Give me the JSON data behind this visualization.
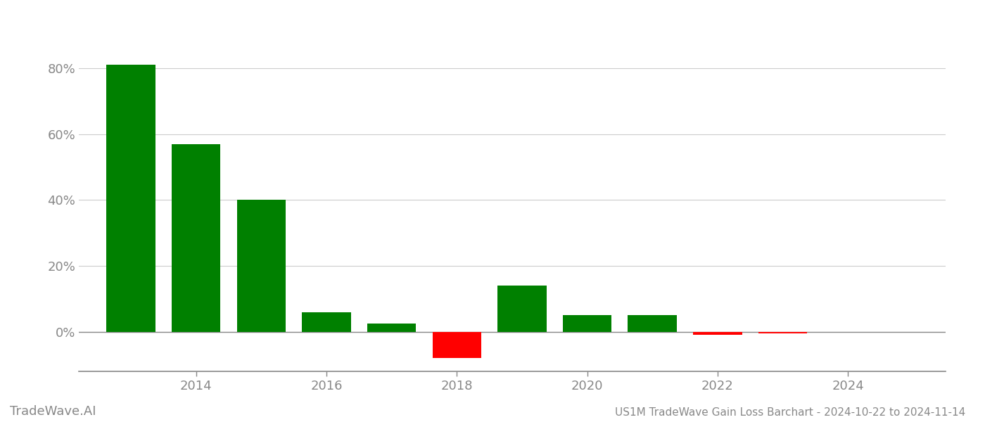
{
  "years": [
    2013,
    2014,
    2015,
    2016,
    2017,
    2018,
    2019,
    2020,
    2021,
    2022,
    2023
  ],
  "values": [
    0.81,
    0.57,
    0.4,
    0.06,
    0.025,
    -0.08,
    0.14,
    0.05,
    0.05,
    -0.01,
    -0.005
  ],
  "bar_colors": [
    "#008000",
    "#008000",
    "#008000",
    "#008000",
    "#008000",
    "#ff0000",
    "#008000",
    "#008000",
    "#008000",
    "#ff0000",
    "#ff0000"
  ],
  "title": "US1M TradeWave Gain Loss Barchart - 2024-10-22 to 2024-11-14",
  "watermark": "TradeWave.AI",
  "background_color": "#ffffff",
  "grid_color": "#cccccc",
  "axis_color": "#888888",
  "tick_color": "#888888",
  "ylim": [
    -0.12,
    0.93
  ],
  "xlim": [
    2012.2,
    2025.5
  ],
  "yticks": [
    0.0,
    0.2,
    0.4,
    0.6,
    0.8
  ],
  "ytick_labels": [
    "0%",
    "20%",
    "40%",
    "60%",
    "80%"
  ],
  "xticks": [
    2014,
    2016,
    2018,
    2020,
    2022,
    2024
  ],
  "bar_width": 0.75,
  "title_fontsize": 11,
  "tick_fontsize": 13,
  "watermark_fontsize": 13
}
